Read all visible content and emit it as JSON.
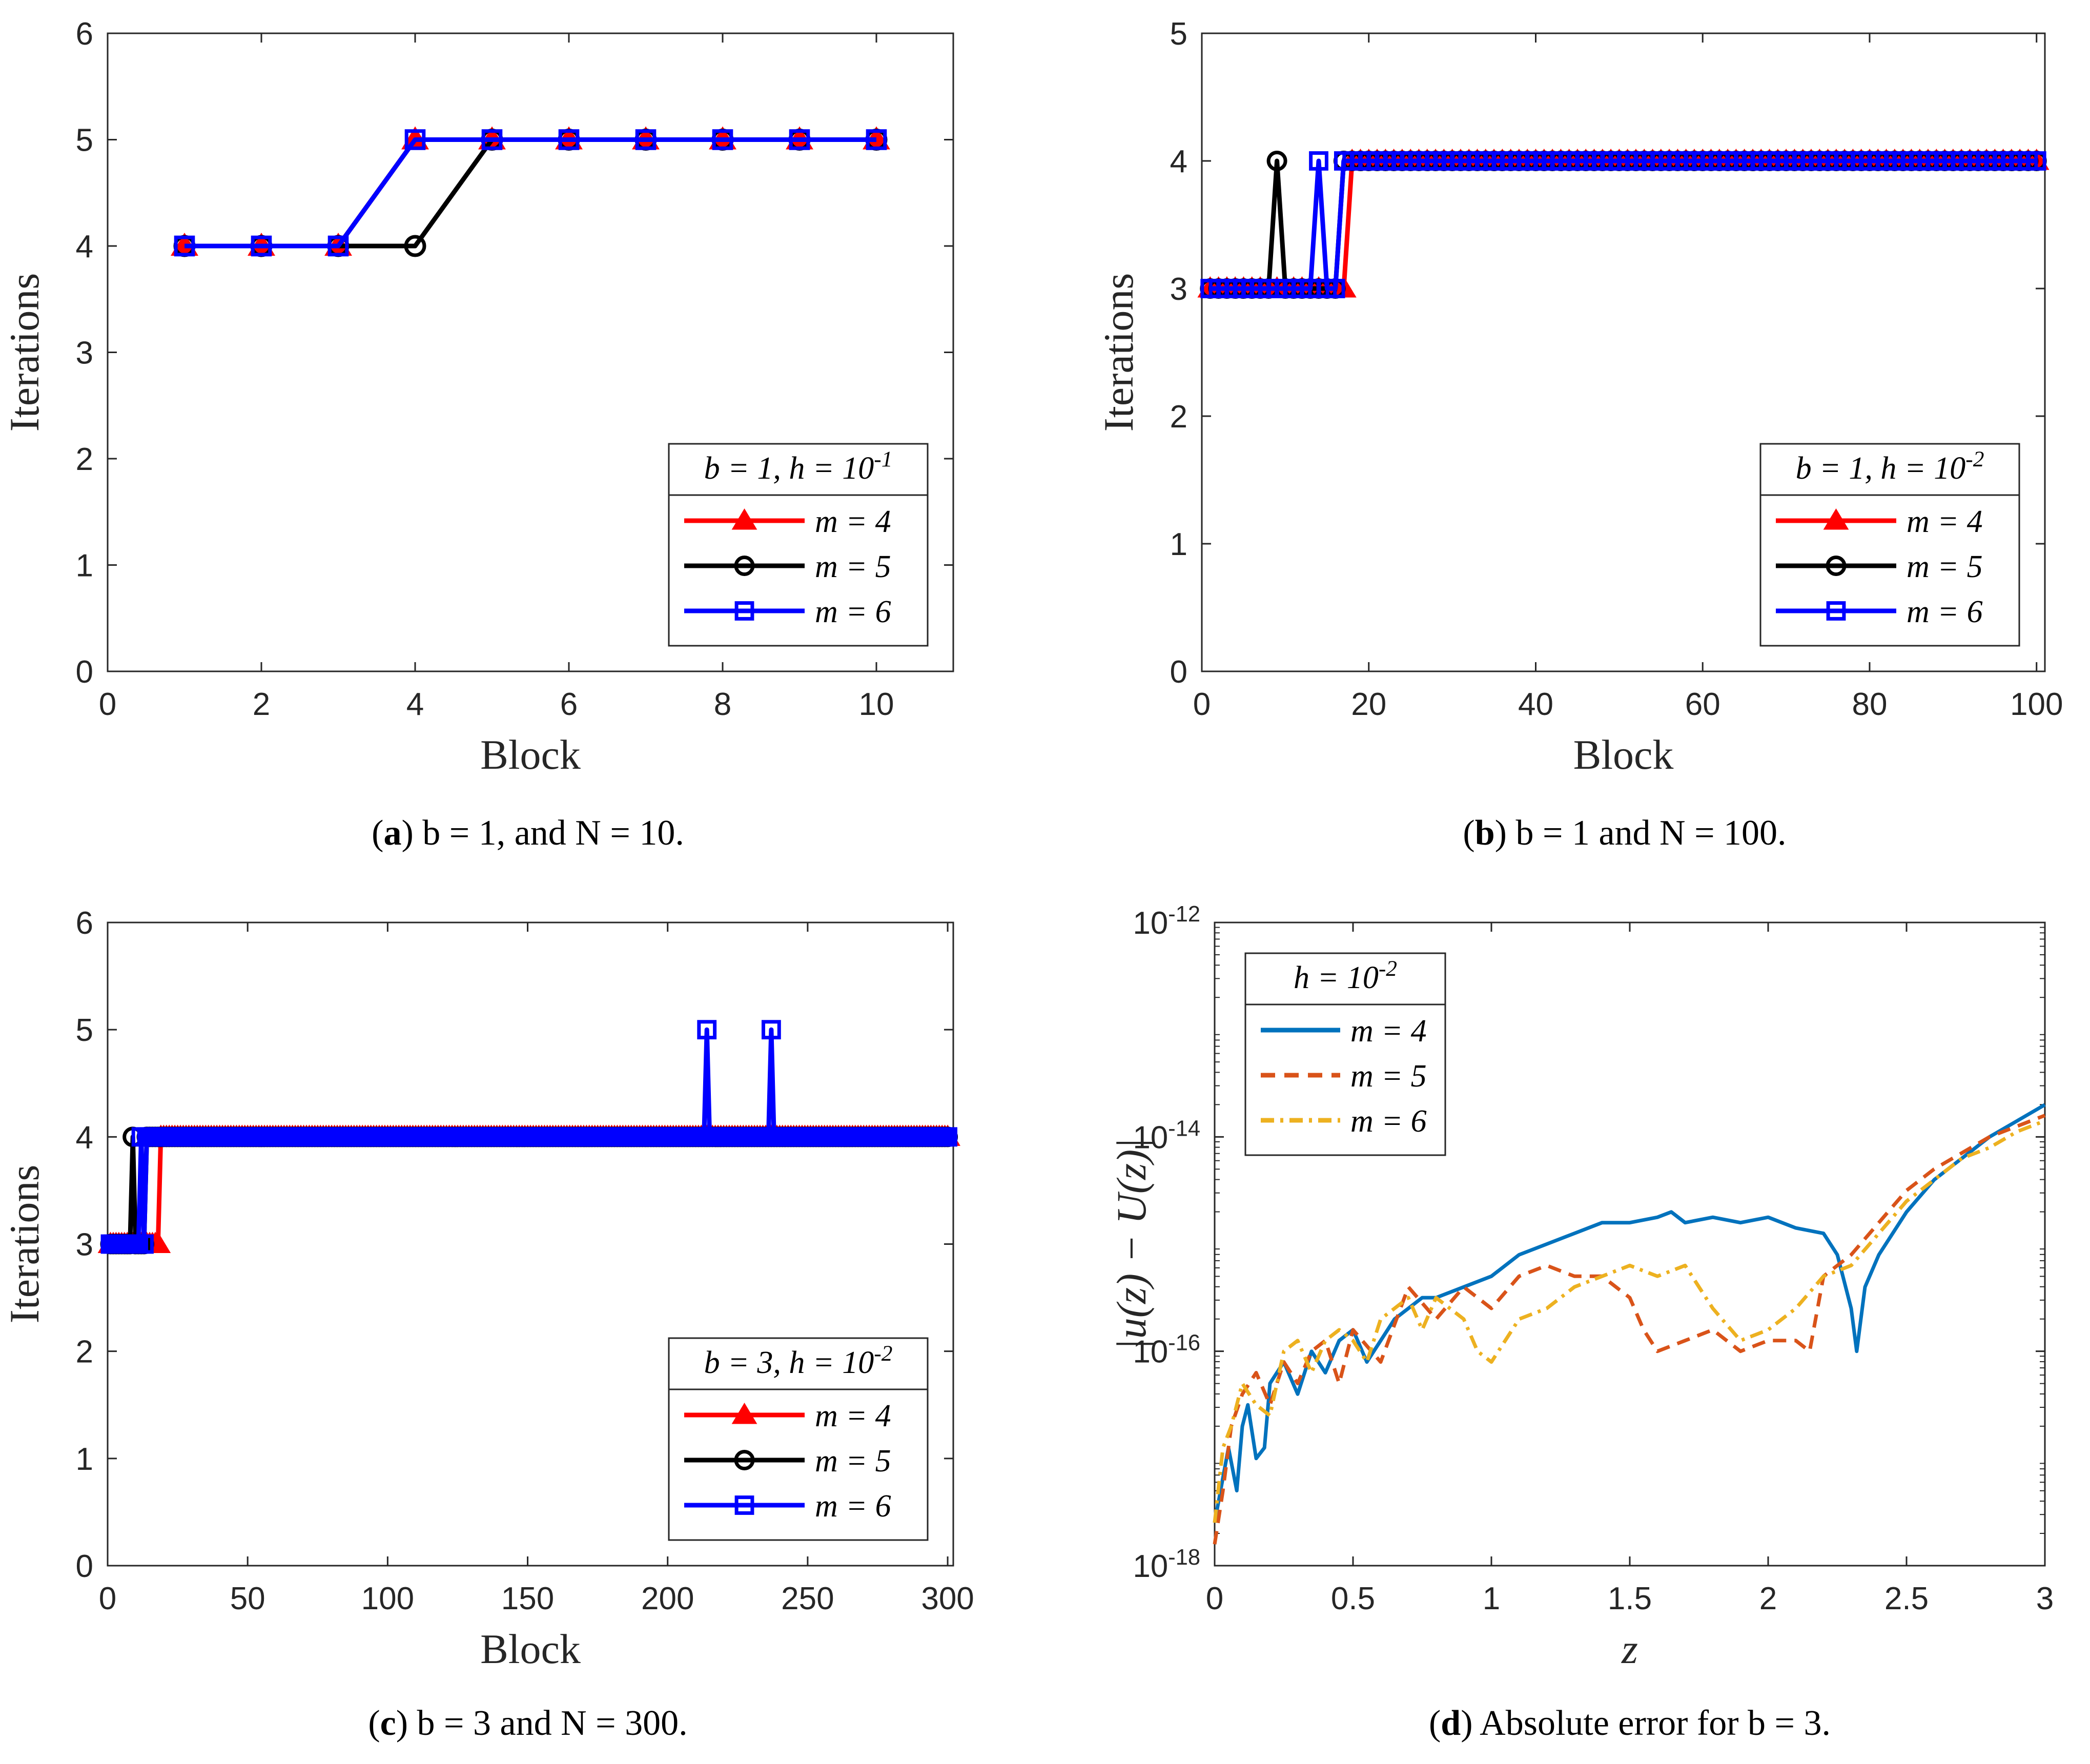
{
  "chart_data": [
    {
      "id": "a",
      "type": "line",
      "caption": {
        "label": "a",
        "text": "b = 1, and N = 10."
      },
      "xlabel": "Block",
      "ylabel": "Iterations",
      "xlim": [
        0,
        11
      ],
      "ylim": [
        0,
        6
      ],
      "xticks": [
        "0",
        "2",
        "4",
        "6",
        "8",
        "10"
      ],
      "yticks": [
        "0",
        "1",
        "2",
        "3",
        "4",
        "5",
        "6"
      ],
      "legend_title": "b = 1, h = 10^-1",
      "legend_position": "lower-right",
      "series": [
        {
          "name": "m = 4",
          "color": "#ff0000",
          "marker": "triangle",
          "x": [
            1,
            2,
            3,
            4,
            5,
            6,
            7,
            8,
            9,
            10
          ],
          "y": [
            4,
            4,
            4,
            5,
            5,
            5,
            5,
            5,
            5,
            5
          ]
        },
        {
          "name": "m = 5",
          "color": "#000000",
          "marker": "circle",
          "x": [
            1,
            2,
            3,
            4,
            5,
            6,
            7,
            8,
            9,
            10
          ],
          "y": [
            4,
            4,
            4,
            4,
            5,
            5,
            5,
            5,
            5,
            5
          ]
        },
        {
          "name": "m = 6",
          "color": "#0000ff",
          "marker": "square",
          "x": [
            1,
            2,
            3,
            4,
            5,
            6,
            7,
            8,
            9,
            10
          ],
          "y": [
            4,
            4,
            4,
            5,
            5,
            5,
            5,
            5,
            5,
            5
          ]
        }
      ]
    },
    {
      "id": "b",
      "type": "line",
      "caption": {
        "label": "b",
        "text": "b = 1 and N = 100."
      },
      "xlabel": "Block",
      "ylabel": "Iterations",
      "xlim": [
        0,
        101
      ],
      "ylim": [
        0,
        5
      ],
      "xticks": [
        "0",
        "20",
        "40",
        "60",
        "80",
        "100"
      ],
      "yticks": [
        "0",
        "1",
        "2",
        "3",
        "4",
        "5"
      ],
      "legend_title": "b = 1, h = 10^-2",
      "legend_position": "lower-right",
      "n": 100,
      "series": [
        {
          "name": "m = 4",
          "color": "#ff0000",
          "marker": "triangle",
          "default": 4,
          "low_until": 19,
          "spikes": [
            [
              18,
              4
            ]
          ]
        },
        {
          "name": "m = 5",
          "color": "#000000",
          "marker": "circle",
          "default": 4,
          "low_until": 17,
          "spikes": [
            [
              9,
              4
            ]
          ]
        },
        {
          "name": "m = 6",
          "color": "#0000ff",
          "marker": "square",
          "default": 4,
          "low_until": 17,
          "spikes": [
            [
              14,
              4
            ]
          ]
        }
      ]
    },
    {
      "id": "c",
      "type": "line",
      "caption": {
        "label": "c",
        "text": "b = 3 and N = 300."
      },
      "xlabel": "Block",
      "ylabel": "Iterations",
      "xlim": [
        0,
        302
      ],
      "ylim": [
        0,
        6
      ],
      "xticks": [
        "0",
        "50",
        "100",
        "150",
        "200",
        "250",
        "300"
      ],
      "yticks": [
        "0",
        "1",
        "2",
        "3",
        "4",
        "5",
        "6"
      ],
      "legend_title": "b = 3, h = 10^-2",
      "legend_position": "lower-right",
      "n": 300,
      "series": [
        {
          "name": "m = 4",
          "color": "#ff0000",
          "marker": "triangle",
          "default": 4,
          "low_until": 19,
          "spikes": []
        },
        {
          "name": "m = 5",
          "color": "#000000",
          "marker": "circle",
          "default": 4,
          "low_until": 14,
          "spikes": [
            [
              9,
              4
            ]
          ]
        },
        {
          "name": "m = 6",
          "color": "#0000ff",
          "marker": "square",
          "default": 4,
          "low_until": 14,
          "spikes": [
            [
              12,
              4
            ],
            [
              214,
              5
            ],
            [
              237,
              5
            ]
          ]
        }
      ]
    },
    {
      "id": "d",
      "type": "line",
      "caption": {
        "label": "d",
        "text": "Absolute error for b = 3."
      },
      "xlabel": "z",
      "ylabel": "|u(z) − U(z)|",
      "xlim": [
        0,
        3
      ],
      "ylim_log10": [
        -18,
        -12
      ],
      "xticks": [
        "0",
        "0.5",
        "1",
        "1.5",
        "2",
        "2.5",
        "3"
      ],
      "yticks": [
        "10^-18",
        "10^-16",
        "10^-14",
        "10^-12"
      ],
      "legend_title": "h = 10^-2",
      "legend_position": "upper-left",
      "series": [
        {
          "name": "m = 4",
          "color": "#0072bd",
          "dash": "solid",
          "x": [
            0,
            0.05,
            0.08,
            0.1,
            0.12,
            0.15,
            0.18,
            0.2,
            0.25,
            0.3,
            0.35,
            0.4,
            0.45,
            0.5,
            0.55,
            0.6,
            0.65,
            0.7,
            0.75,
            0.8,
            0.9,
            1.0,
            1.1,
            1.2,
            1.3,
            1.4,
            1.5,
            1.6,
            1.65,
            1.7,
            1.8,
            1.9,
            2.0,
            2.1,
            2.2,
            2.25,
            2.3,
            2.32,
            2.35,
            2.4,
            2.5,
            2.6,
            2.7,
            2.8,
            2.9,
            3.0
          ],
          "y": [
            -17.6,
            -16.9,
            -17.3,
            -16.7,
            -16.5,
            -17.0,
            -16.9,
            -16.3,
            -16.1,
            -16.4,
            -16.0,
            -16.2,
            -15.9,
            -15.8,
            -16.1,
            -15.9,
            -15.7,
            -15.6,
            -15.5,
            -15.5,
            -15.4,
            -15.3,
            -15.1,
            -15.0,
            -14.9,
            -14.8,
            -14.8,
            -14.75,
            -14.7,
            -14.8,
            -14.75,
            -14.8,
            -14.75,
            -14.85,
            -14.9,
            -15.1,
            -15.6,
            -16.0,
            -15.4,
            -15.1,
            -14.7,
            -14.4,
            -14.2,
            -14.0,
            -13.85,
            -13.7
          ]
        },
        {
          "name": "m = 5",
          "color": "#d95319",
          "dash": "dashed",
          "x": [
            0,
            0.03,
            0.06,
            0.1,
            0.15,
            0.2,
            0.25,
            0.3,
            0.35,
            0.4,
            0.45,
            0.5,
            0.6,
            0.7,
            0.8,
            0.9,
            1.0,
            1.1,
            1.2,
            1.3,
            1.4,
            1.5,
            1.55,
            1.6,
            1.7,
            1.8,
            1.9,
            2.0,
            2.1,
            2.15,
            2.2,
            2.3,
            2.4,
            2.5,
            2.6,
            2.7,
            2.8,
            2.9,
            3.0
          ],
          "y": [
            -17.8,
            -17.3,
            -16.7,
            -16.4,
            -16.2,
            -16.5,
            -16.1,
            -16.3,
            -16.0,
            -15.9,
            -16.3,
            -15.8,
            -16.1,
            -15.4,
            -15.7,
            -15.4,
            -15.6,
            -15.3,
            -15.2,
            -15.3,
            -15.3,
            -15.5,
            -15.8,
            -16.0,
            -15.9,
            -15.8,
            -16.0,
            -15.9,
            -15.9,
            -16.0,
            -15.3,
            -15.1,
            -14.8,
            -14.5,
            -14.3,
            -14.15,
            -14.0,
            -13.9,
            -13.8
          ]
        },
        {
          "name": "m = 6",
          "color": "#edb120",
          "dash": "dashdot",
          "x": [
            0,
            0.03,
            0.06,
            0.1,
            0.15,
            0.2,
            0.25,
            0.3,
            0.35,
            0.4,
            0.45,
            0.5,
            0.55,
            0.6,
            0.7,
            0.75,
            0.8,
            0.9,
            0.95,
            1.0,
            1.05,
            1.1,
            1.2,
            1.3,
            1.4,
            1.5,
            1.6,
            1.7,
            1.8,
            1.9,
            2.0,
            2.1,
            2.2,
            2.3,
            2.4,
            2.5,
            2.6,
            2.7,
            2.8,
            2.9,
            3.0
          ],
          "y": [
            -17.6,
            -16.9,
            -16.7,
            -16.3,
            -16.5,
            -16.6,
            -16.0,
            -15.9,
            -16.2,
            -15.9,
            -15.8,
            -15.9,
            -16.1,
            -15.7,
            -15.5,
            -15.8,
            -15.5,
            -15.7,
            -16.0,
            -16.1,
            -15.9,
            -15.7,
            -15.6,
            -15.4,
            -15.3,
            -15.2,
            -15.3,
            -15.2,
            -15.6,
            -15.9,
            -15.8,
            -15.6,
            -15.3,
            -15.2,
            -14.9,
            -14.6,
            -14.4,
            -14.2,
            -14.1,
            -13.95,
            -13.85
          ]
        }
      ]
    }
  ]
}
